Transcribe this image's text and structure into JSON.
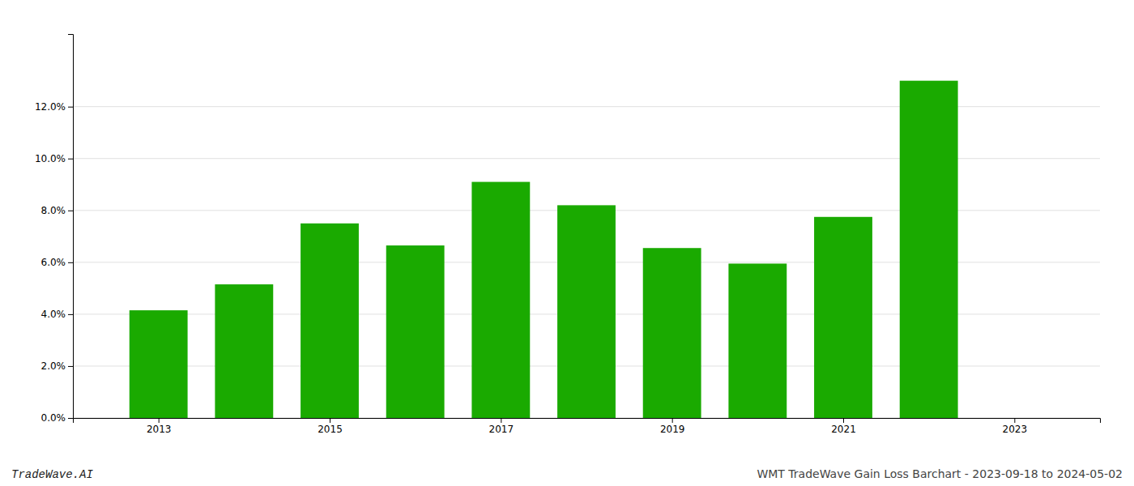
{
  "chart_data": {
    "type": "bar",
    "x": [
      2013,
      2014,
      2015,
      2016,
      2017,
      2018,
      2019,
      2020,
      2021,
      2022
    ],
    "values": [
      0.0415,
      0.0515,
      0.075,
      0.0665,
      0.091,
      0.082,
      0.0655,
      0.0595,
      0.0775,
      0.13
    ],
    "color": "#1aaa00",
    "xlim": [
      2012,
      2024
    ],
    "xticks": [
      2013,
      2015,
      2017,
      2019,
      2021,
      2023
    ],
    "ylim": [
      0,
      0.148
    ],
    "yticks": [
      {
        "value": 0.0,
        "label": "0.0%"
      },
      {
        "value": 0.02,
        "label": "2.0%"
      },
      {
        "value": 0.04,
        "label": "4.0%"
      },
      {
        "value": 0.06,
        "label": "6.0%"
      },
      {
        "value": 0.08,
        "label": "8.0%"
      },
      {
        "value": 0.1,
        "label": "10.0%"
      },
      {
        "value": 0.12,
        "label": "12.0%"
      }
    ],
    "grid": true,
    "annotations": [
      "TradeWave.AI",
      "WMT TradeWave Gain Loss Barchart - 2023-09-18 to 2024-05-02"
    ]
  }
}
